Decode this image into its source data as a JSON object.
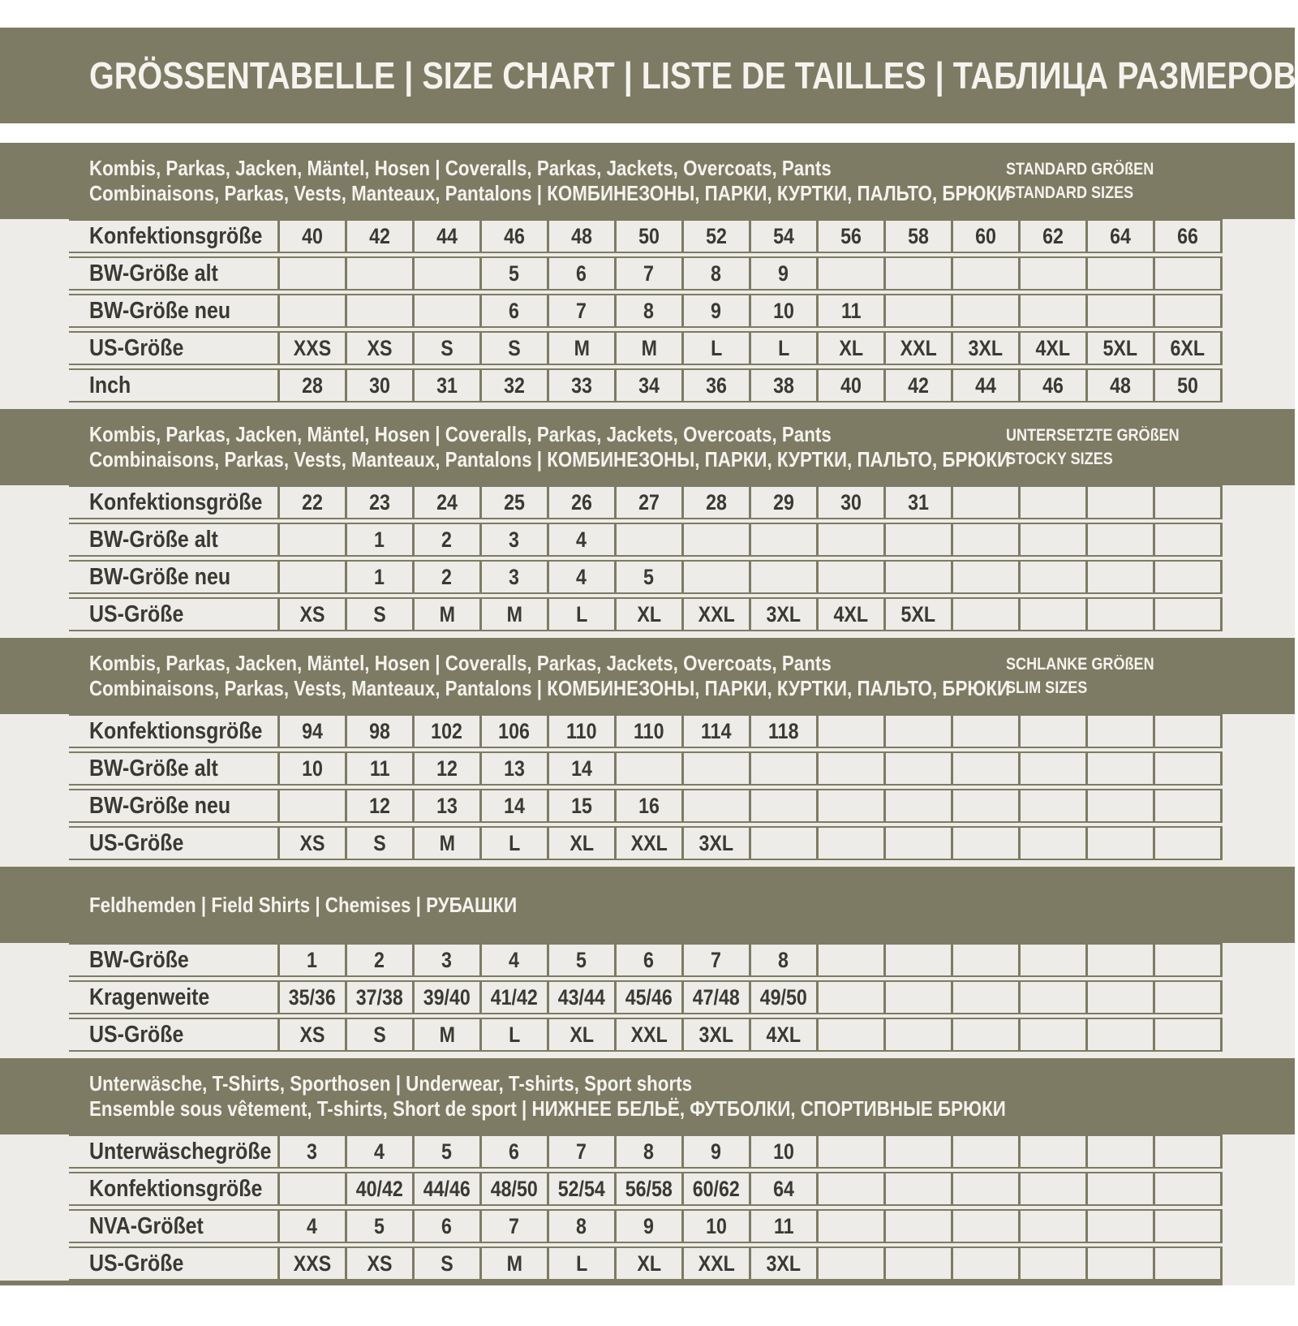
{
  "title": "GRÖSSENTABELLE | SIZE CHART | LISTE DE TAILLES | ТАБЛИЦА РАЗМЕРОВ",
  "colors": {
    "olive": "#7d7b63",
    "cell_bg": "#edece8",
    "band_text": "#f4f3ee",
    "cell_text": "#3a3a33"
  },
  "column_count": 14,
  "sections": [
    {
      "header_line1": "Kombis, Parkas, Jacken, Mäntel, Hosen | Coveralls, Parkas, Jackets, Overcoats, Pants",
      "header_line2": "Combinaisons, Parkas, Vests, Manteaux, Pantalons | КОМБИНЕЗОНЫ, ПАРКИ, КУРТКИ, ПАЛЬТО, БРЮКИ",
      "side_label_line1": "STANDARD GRÖßEN",
      "side_label_line2": "STANDARD SIZES",
      "rows": [
        {
          "label": "Konfektionsgröße",
          "cells": [
            "40",
            "42",
            "44",
            "46",
            "48",
            "50",
            "52",
            "54",
            "56",
            "58",
            "60",
            "62",
            "64",
            "66"
          ]
        },
        {
          "label": "BW-Größe alt",
          "cells": [
            "",
            "",
            "",
            "5",
            "6",
            "7",
            "8",
            "9",
            "",
            "",
            "",
            "",
            "",
            ""
          ]
        },
        {
          "label": "BW-Größe neu",
          "cells": [
            "",
            "",
            "",
            "6",
            "7",
            "8",
            "9",
            "10",
            "11",
            "",
            "",
            "",
            "",
            ""
          ]
        },
        {
          "label": "US-Größe",
          "cells": [
            "XXS",
            "XS",
            "S",
            "S",
            "M",
            "M",
            "L",
            "L",
            "XL",
            "XXL",
            "3XL",
            "4XL",
            "5XL",
            "6XL"
          ]
        },
        {
          "label": "Inch",
          "cells": [
            "28",
            "30",
            "31",
            "32",
            "33",
            "34",
            "36",
            "38",
            "40",
            "42",
            "44",
            "46",
            "48",
            "50"
          ]
        }
      ]
    },
    {
      "header_line1": "Kombis, Parkas, Jacken, Mäntel, Hosen | Coveralls, Parkas, Jackets, Overcoats, Pants",
      "header_line2": "Combinaisons, Parkas, Vests, Manteaux, Pantalons | КОМБИНЕЗОНЫ, ПАРКИ, КУРТКИ, ПАЛЬТО, БРЮКИ",
      "side_label_line1": "UNTERSETZTE GRÖßEN",
      "side_label_line2": "STOCKY SIZES",
      "rows": [
        {
          "label": "Konfektionsgröße",
          "cells": [
            "22",
            "23",
            "24",
            "25",
            "26",
            "27",
            "28",
            "29",
            "30",
            "31",
            "",
            "",
            "",
            ""
          ]
        },
        {
          "label": "BW-Größe alt",
          "cells": [
            "",
            "1",
            "2",
            "3",
            "4",
            "",
            "",
            "",
            "",
            "",
            "",
            "",
            "",
            ""
          ]
        },
        {
          "label": "BW-Größe neu",
          "cells": [
            "",
            "1",
            "2",
            "3",
            "4",
            "5",
            "",
            "",
            "",
            "",
            "",
            "",
            "",
            ""
          ]
        },
        {
          "label": "US-Größe",
          "cells": [
            "XS",
            "S",
            "M",
            "M",
            "L",
            "XL",
            "XXL",
            "3XL",
            "4XL",
            "5XL",
            "",
            "",
            "",
            ""
          ]
        }
      ]
    },
    {
      "header_line1": "Kombis, Parkas, Jacken, Mäntel, Hosen | Coveralls, Parkas, Jackets, Overcoats, Pants",
      "header_line2": "Combinaisons, Parkas, Vests, Manteaux, Pantalons | КОМБИНЕЗОНЫ, ПАРКИ, КУРТКИ, ПАЛЬТО, БРЮКИ",
      "side_label_line1": "SCHLANKE GRÖßEN",
      "side_label_line2": "SLIM SIZES",
      "rows": [
        {
          "label": "Konfektionsgröße",
          "cells": [
            "94",
            "98",
            "102",
            "106",
            "110",
            "110",
            "114",
            "118",
            "",
            "",
            "",
            "",
            "",
            ""
          ]
        },
        {
          "label": "BW-Größe alt",
          "cells": [
            "10",
            "11",
            "12",
            "13",
            "14",
            "",
            "",
            "",
            "",
            "",
            "",
            "",
            "",
            ""
          ]
        },
        {
          "label": "BW-Größe neu",
          "cells": [
            "",
            "12",
            "13",
            "14",
            "15",
            "16",
            "",
            "",
            "",
            "",
            "",
            "",
            "",
            ""
          ]
        },
        {
          "label": "US-Größe",
          "cells": [
            "XS",
            "S",
            "M",
            "L",
            "XL",
            "XXL",
            "3XL",
            "",
            "",
            "",
            "",
            "",
            "",
            ""
          ]
        }
      ]
    },
    {
      "header_line1": "Feldhemden | Field Shirts | Chemises | РУБАШКИ",
      "header_line2": "",
      "side_label_line1": "",
      "side_label_line2": "",
      "rows": [
        {
          "label": "BW-Größe",
          "cells": [
            "1",
            "2",
            "3",
            "4",
            "5",
            "6",
            "7",
            "8",
            "",
            "",
            "",
            "",
            "",
            ""
          ]
        },
        {
          "label": "Kragenweite",
          "cells": [
            "35/36",
            "37/38",
            "39/40",
            "41/42",
            "43/44",
            "45/46",
            "47/48",
            "49/50",
            "",
            "",
            "",
            "",
            "",
            ""
          ]
        },
        {
          "label": "US-Größe",
          "cells": [
            "XS",
            "S",
            "M",
            "L",
            "XL",
            "XXL",
            "3XL",
            "4XL",
            "",
            "",
            "",
            "",
            "",
            ""
          ]
        }
      ]
    },
    {
      "header_line1": "Unterwäsche, T-Shirts, Sporthosen | Underwear, T-shirts, Sport shorts",
      "header_line2": "Ensemble sous vêtement, T-shirts, Short de sport | НИЖНЕЕ БЕЛЬЁ, ФУТБОЛКИ, СПОРТИВНЫЕ БРЮКИ",
      "side_label_line1": "",
      "side_label_line2": "",
      "rows": [
        {
          "label": "Unterwäschegröße",
          "cells": [
            "3",
            "4",
            "5",
            "6",
            "7",
            "8",
            "9",
            "10",
            "",
            "",
            "",
            "",
            "",
            ""
          ]
        },
        {
          "label": "Konfektionsgröße",
          "cells": [
            "",
            "40/42",
            "44/46",
            "48/50",
            "52/54",
            "56/58",
            "60/62",
            "64",
            "",
            "",
            "",
            "",
            "",
            ""
          ]
        },
        {
          "label": "NVA-Größet",
          "cells": [
            "4",
            "5",
            "6",
            "7",
            "8",
            "9",
            "10",
            "11",
            "",
            "",
            "",
            "",
            "",
            ""
          ]
        },
        {
          "label": "US-Größe",
          "cells": [
            "XXS",
            "XS",
            "S",
            "M",
            "L",
            "XL",
            "XXL",
            "3XL",
            "",
            "",
            "",
            "",
            "",
            ""
          ]
        }
      ]
    }
  ]
}
